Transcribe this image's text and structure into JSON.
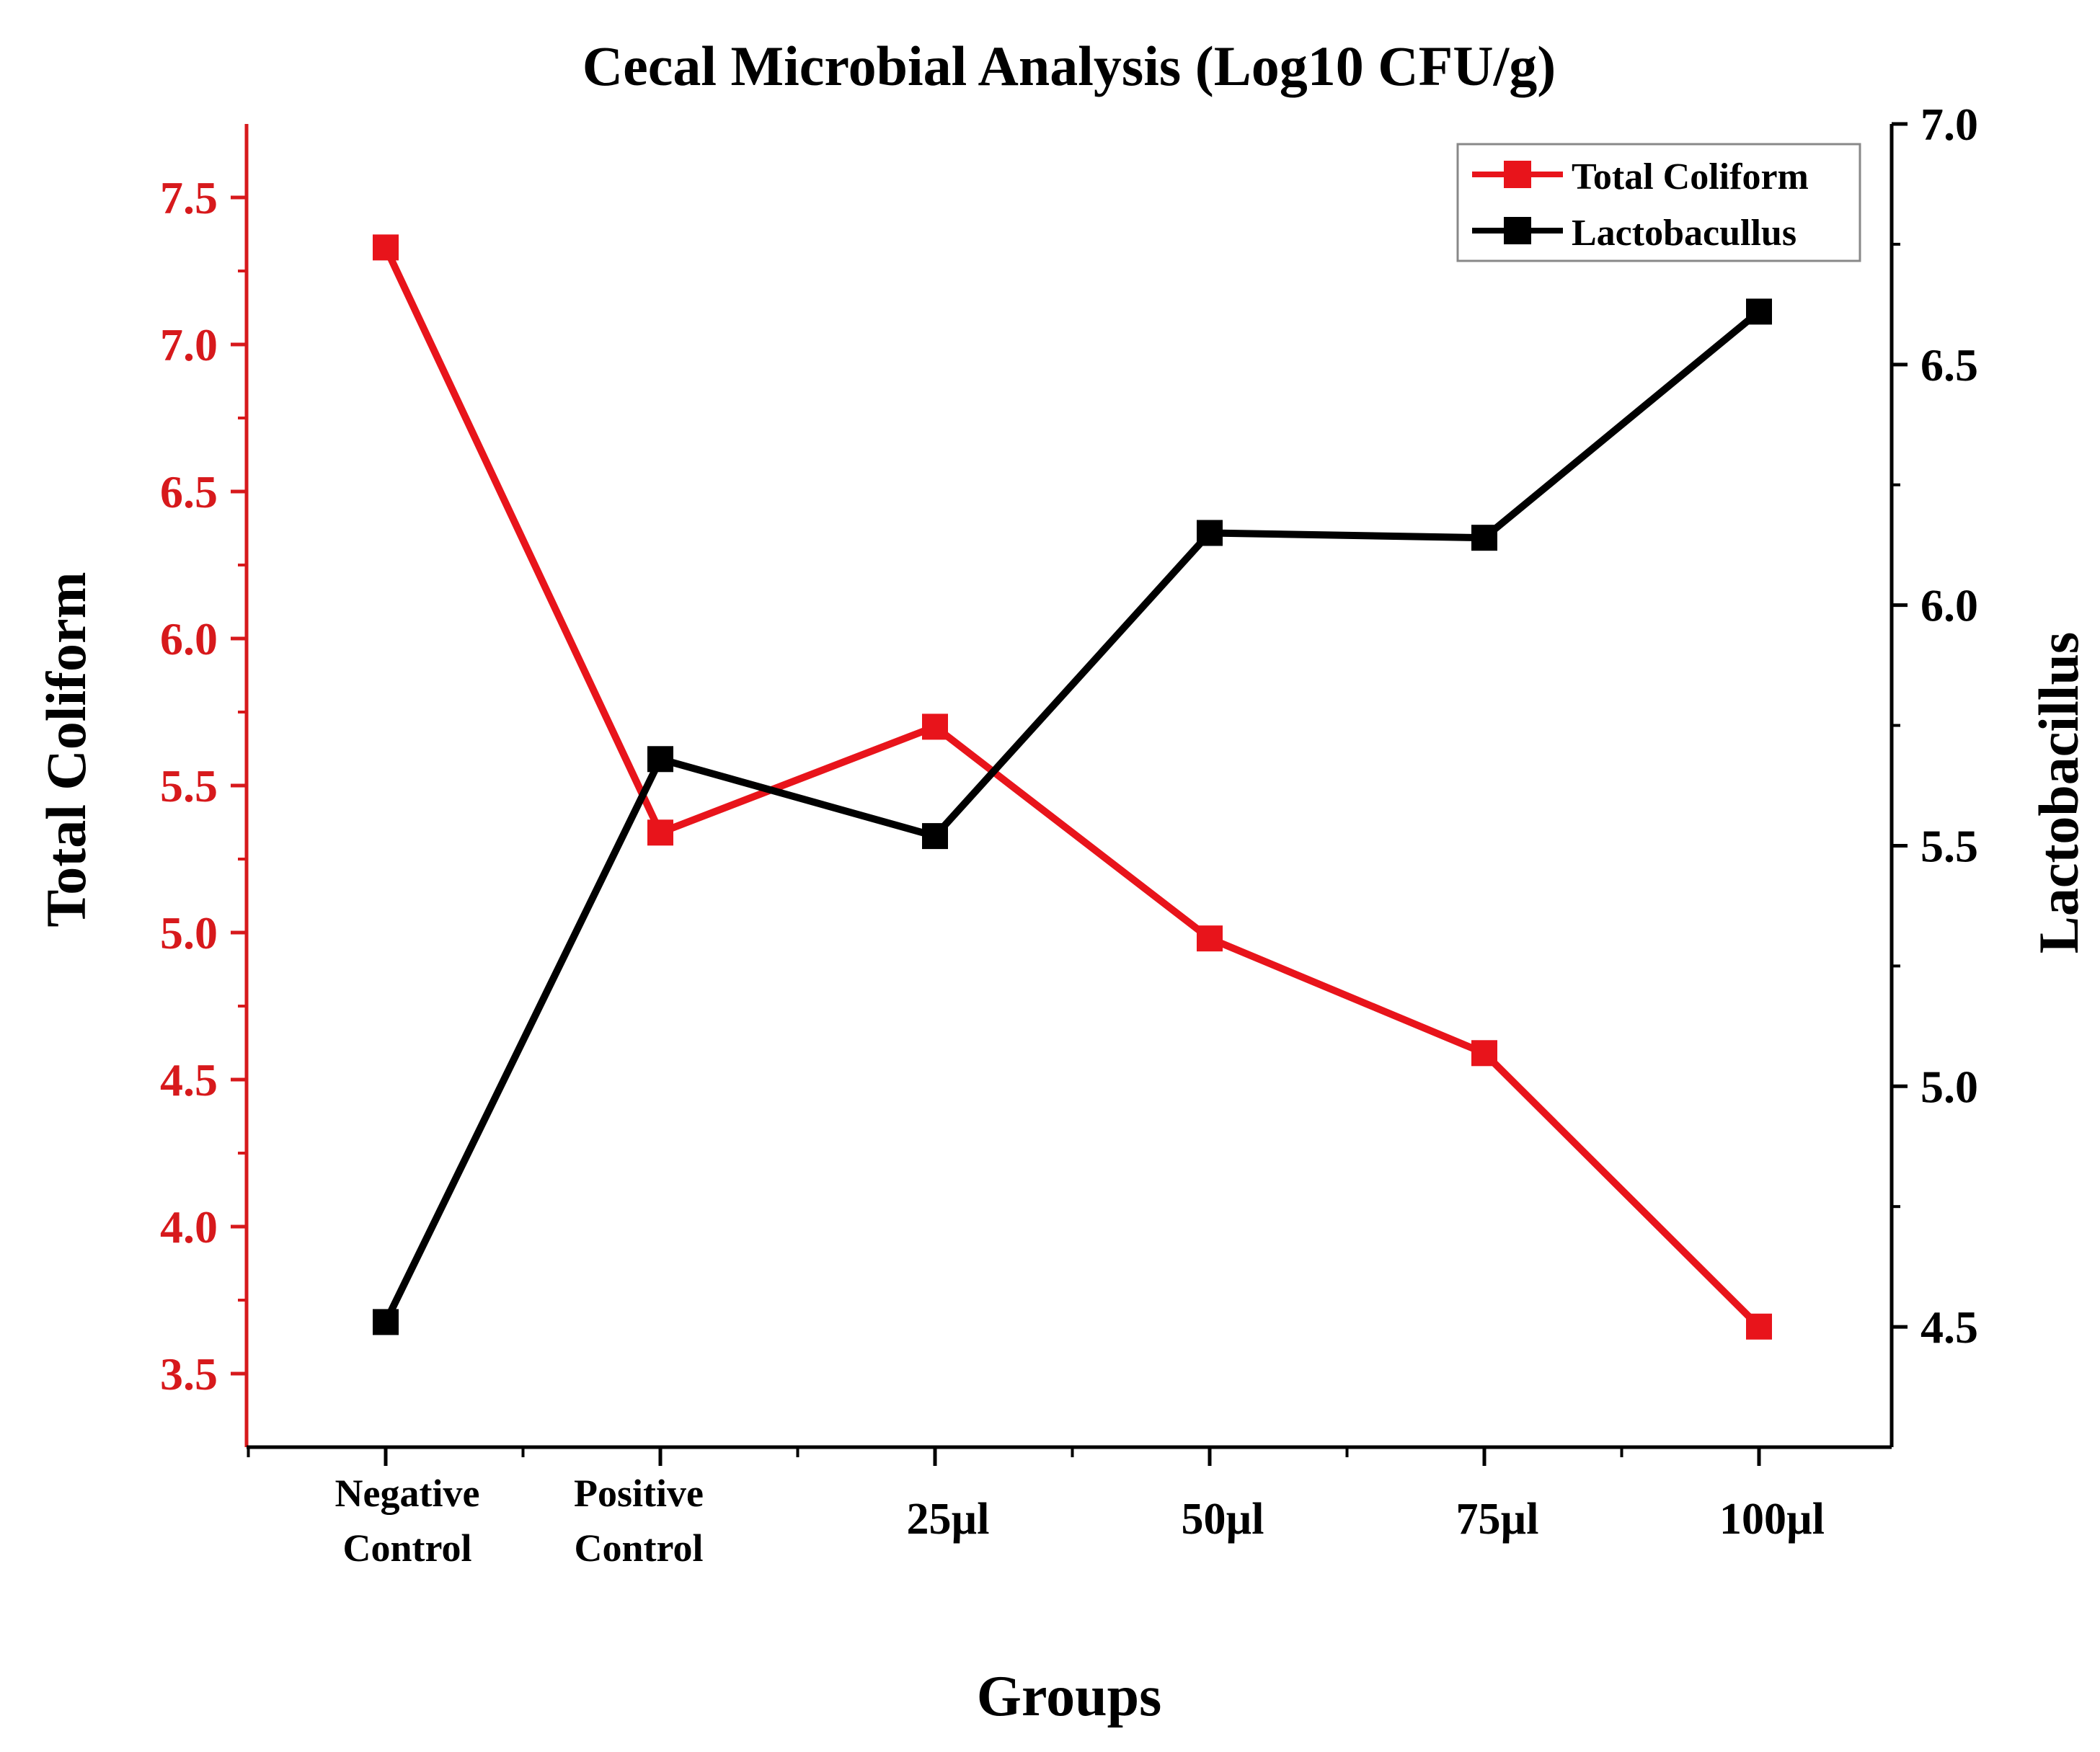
{
  "chart_data": {
    "type": "line",
    "title": "Cecal Microbial Analysis (Log10 CFU/g)",
    "xlabel": "Groups",
    "categories": [
      [
        "Negative",
        "Control"
      ],
      [
        "Positive",
        "Control"
      ],
      [
        "25µl"
      ],
      [
        "50µl"
      ],
      [
        "75µl"
      ],
      [
        "100µl"
      ]
    ],
    "y_left": {
      "label": "Total Coliform",
      "range": [
        3.25,
        7.75
      ],
      "ticks": [
        "3.5",
        "4.0",
        "4.5",
        "5.0",
        "5.5",
        "6.0",
        "6.5",
        "7.0",
        "7.5"
      ],
      "color": "#d7191c"
    },
    "y_right": {
      "label": "Lactobacillus",
      "range": [
        4.25,
        7.0
      ],
      "ticks": [
        "4.5",
        "5.0",
        "5.5",
        "6.0",
        "6.5",
        "7.0"
      ],
      "color": "#000000"
    },
    "series": [
      {
        "name": "Total Coliform",
        "axis": "left",
        "color": "#e8141b",
        "values": [
          7.33,
          5.34,
          5.7,
          4.98,
          4.59,
          3.66
        ]
      },
      {
        "name": "Lactobaculllus",
        "axis": "right",
        "color": "#000000",
        "values": [
          4.51,
          5.68,
          5.52,
          6.15,
          6.14,
          6.61
        ]
      }
    ],
    "legend": {
      "placement": "top-right",
      "entries": [
        "Total Coliform",
        "Lactobacullus"
      ]
    },
    "grid": false
  }
}
